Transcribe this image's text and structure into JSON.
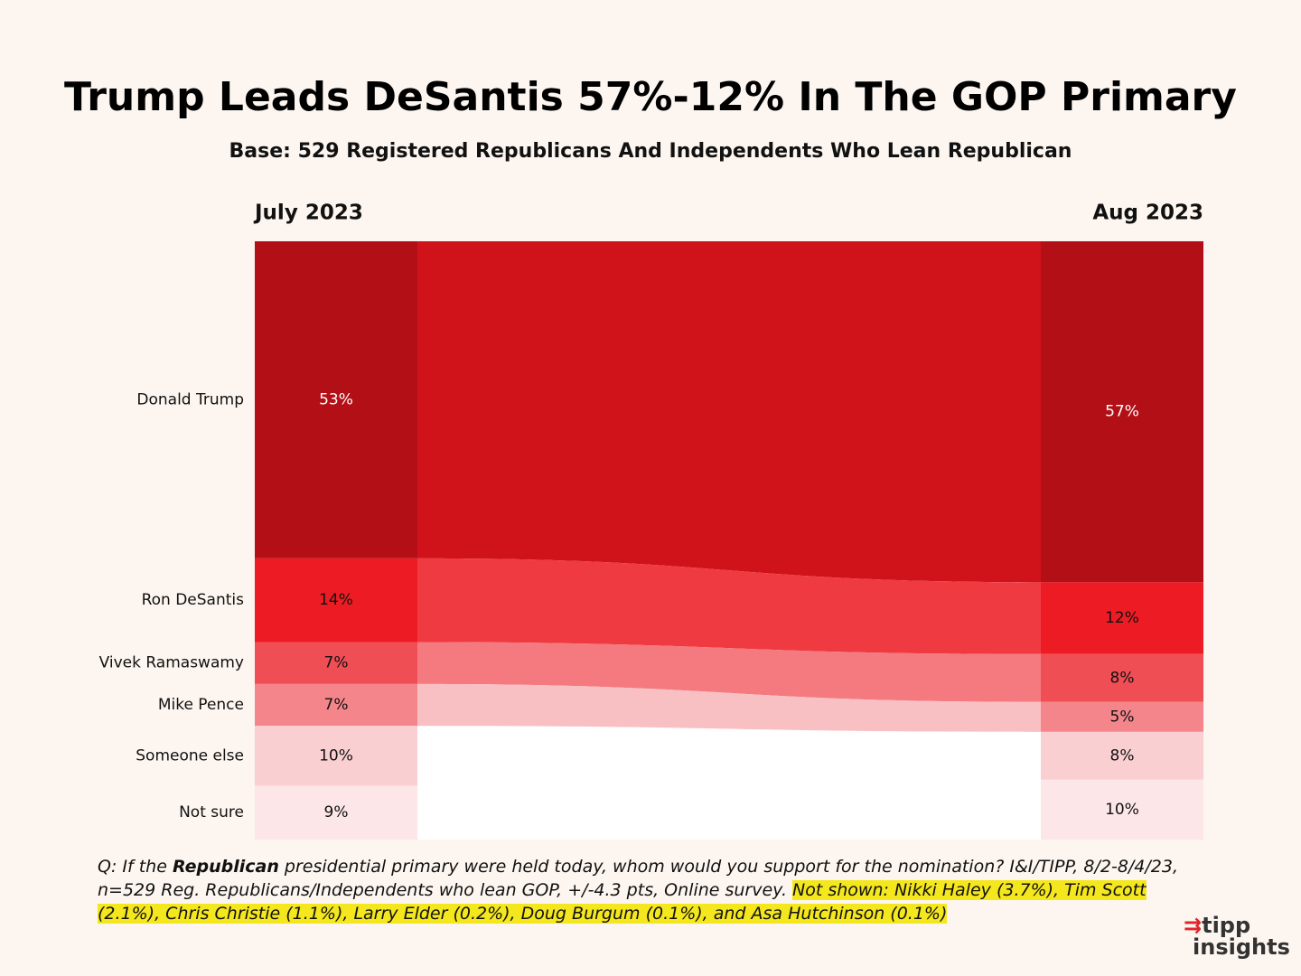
{
  "chart_data": {
    "type": "flow",
    "title": "Trump Leads DeSantis 57%-12% In The GOP Primary",
    "subtitle": "Base: 529 Registered Republicans And Independents Who Lean Republican",
    "categories": [
      "Donald Trump",
      "Ron DeSantis",
      "Vivek Ramaswamy",
      "Mike Pence",
      "Someone else",
      "Not sure"
    ],
    "colors": [
      "#b30f16",
      "#ed1c24",
      "#f04e55",
      "#f4868b",
      "#f9cfd1",
      "#fce6e7"
    ],
    "flow_colors": [
      "#d0121b",
      "#f03a42",
      "#f47a7f",
      "#f9c0c3",
      null,
      null
    ],
    "ylim": [
      0,
      100
    ],
    "series": [
      {
        "name": "July 2023",
        "values": [
          53,
          14,
          7,
          7,
          10,
          9
        ],
        "value_labels": [
          "53%",
          "14%",
          "7%",
          "7%",
          "10%",
          "9%"
        ]
      },
      {
        "name": "Aug 2023",
        "values": [
          57,
          12,
          8,
          5,
          8,
          10
        ],
        "value_labels": [
          "57%",
          "12%",
          "8%",
          "5%",
          "8%",
          "10%"
        ]
      }
    ],
    "footnote": [
      "Q:  If the ",
      "Republican",
      "  presidential primary were held today, whom would you support for the nomination? I&I/TIPP, 8/2-8/4/23, n=529 Reg. Republicans/Independents who lean GOP, +/-4.3 pts, Online survey. ",
      "Not shown: Nikki Haley (3.7%), Tim Scott (2.1%), Chris Christie (1.1%), Larry Elder (0.2%), Doug Burgum (0.1%), and Asa Hutchinson (0.1%)"
    ],
    "logo": [
      "tipp",
      "insights"
    ]
  }
}
